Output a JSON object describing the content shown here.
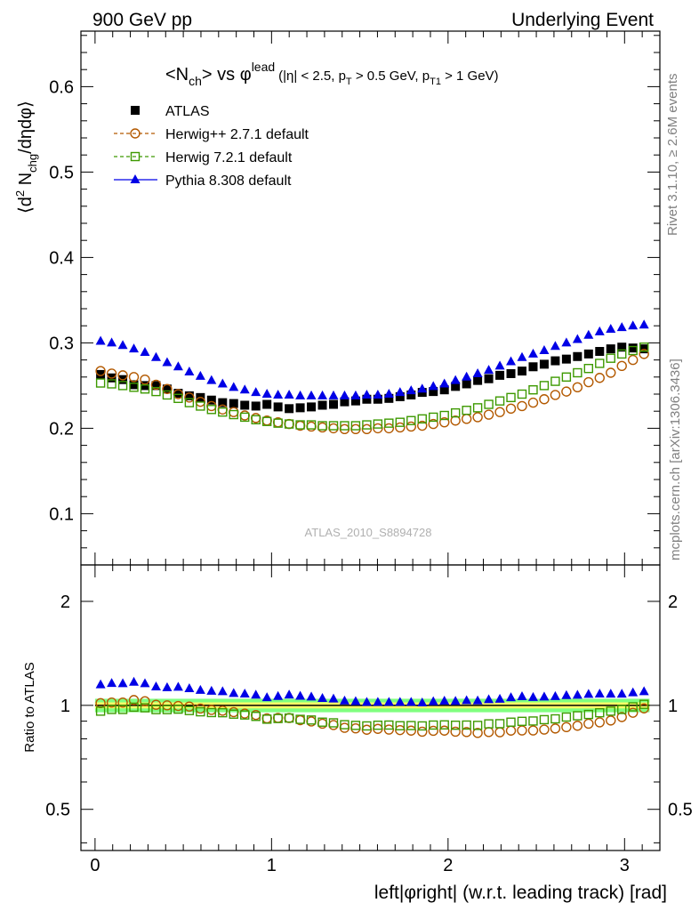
{
  "header": {
    "left": "900 GeV pp",
    "right": "Underlying Event"
  },
  "side_labels": {
    "rivet": "Rivet 3.1.10, ≥ 2.6M events",
    "mcplots": "mcplots.cern.ch [arXiv:1306.3436]"
  },
  "watermark": "ATLAS_2010_S8894728",
  "colors": {
    "atlas": "#000000",
    "herwigpp": "#b35900",
    "herwig7": "#3d9900",
    "pythia": "#0000e6",
    "band_inner": "#ffff66",
    "band_outer": "#80ff80"
  },
  "chart_data": [
    {
      "type": "scatter",
      "title_parts": {
        "open": "<N",
        "sub_ch": "ch",
        "mid": "> vs φ",
        "sup_lead": "lead",
        "cut1": "(|η| < 2.5, p",
        "sub_T": "T",
        "cut2": " > 0.5 GeV, p",
        "sub_T1": "T1",
        "cut3": " > 1 GeV)"
      },
      "ylabel_parts": {
        "a": "⟨d",
        "sup2": "2",
        "b": " N",
        "sub_chg": "chg",
        "c": "/dηdφ⟩"
      },
      "xlim": [
        -0.08,
        3.2
      ],
      "ylim": [
        0.04,
        0.665
      ],
      "yticks": [
        {
          "v": 0.1,
          "label": "0.1"
        },
        {
          "v": 0.2,
          "label": "0.2"
        },
        {
          "v": 0.3,
          "label": "0.3"
        },
        {
          "v": 0.4,
          "label": "0.4"
        },
        {
          "v": 0.5,
          "label": "0.5"
        },
        {
          "v": 0.6,
          "label": "0.6"
        }
      ],
      "x": [
        0.0314,
        0.0942,
        0.1571,
        0.2199,
        0.2827,
        0.3456,
        0.4084,
        0.4712,
        0.5341,
        0.5969,
        0.6597,
        0.7226,
        0.7854,
        0.8482,
        0.9111,
        0.9739,
        1.0367,
        1.0996,
        1.1624,
        1.2252,
        1.2881,
        1.3509,
        1.4137,
        1.4765,
        1.5394,
        1.6022,
        1.665,
        1.7279,
        1.7907,
        1.8535,
        1.9164,
        1.9792,
        2.042,
        2.1049,
        2.1677,
        2.2305,
        2.2934,
        2.3562,
        2.419,
        2.4819,
        2.5447,
        2.6075,
        2.6704,
        2.7332,
        2.796,
        2.8588,
        2.9217,
        2.9845,
        3.0473,
        3.1102
      ],
      "legend": [
        {
          "key": "atlas",
          "label": "ATLAS"
        },
        {
          "key": "herwigpp",
          "label": "Herwig++ 2.7.1 default"
        },
        {
          "key": "herwig7",
          "label": "Herwig 7.2.1 default"
        },
        {
          "key": "pythia",
          "label": "Pythia 8.308 default"
        }
      ],
      "series": [
        {
          "key": "atlas",
          "name": "ATLAS",
          "marker": "filled-square",
          "values": [
            0.263,
            0.259,
            0.257,
            0.251,
            0.25,
            0.25,
            0.246,
            0.241,
            0.238,
            0.236,
            0.233,
            0.23,
            0.229,
            0.227,
            0.226,
            0.228,
            0.225,
            0.223,
            0.224,
            0.225,
            0.227,
            0.228,
            0.231,
            0.232,
            0.234,
            0.234,
            0.235,
            0.237,
            0.239,
            0.242,
            0.243,
            0.245,
            0.249,
            0.252,
            0.256,
            0.258,
            0.262,
            0.264,
            0.267,
            0.272,
            0.275,
            0.279,
            0.281,
            0.284,
            0.287,
            0.29,
            0.293,
            0.295,
            0.294,
            0.293
          ]
        },
        {
          "key": "herwigpp",
          "name": "Herwig++ 2.7.1 default",
          "marker": "open-circle",
          "values": [
            0.267,
            0.264,
            0.262,
            0.26,
            0.257,
            0.251,
            0.246,
            0.24,
            0.236,
            0.231,
            0.226,
            0.222,
            0.219,
            0.215,
            0.212,
            0.209,
            0.207,
            0.205,
            0.203,
            0.202,
            0.201,
            0.2,
            0.199,
            0.199,
            0.199,
            0.2,
            0.2,
            0.201,
            0.202,
            0.203,
            0.205,
            0.207,
            0.209,
            0.211,
            0.213,
            0.216,
            0.219,
            0.223,
            0.226,
            0.23,
            0.234,
            0.239,
            0.243,
            0.248,
            0.254,
            0.259,
            0.265,
            0.273,
            0.28,
            0.287
          ]
        },
        {
          "key": "herwig7",
          "name": "Herwig 7.2.1 default",
          "marker": "open-square",
          "values": [
            0.253,
            0.252,
            0.25,
            0.248,
            0.246,
            0.243,
            0.239,
            0.235,
            0.23,
            0.226,
            0.222,
            0.219,
            0.216,
            0.213,
            0.21,
            0.208,
            0.206,
            0.205,
            0.204,
            0.204,
            0.203,
            0.203,
            0.203,
            0.203,
            0.204,
            0.205,
            0.206,
            0.207,
            0.209,
            0.211,
            0.213,
            0.215,
            0.218,
            0.221,
            0.224,
            0.228,
            0.232,
            0.236,
            0.24,
            0.245,
            0.25,
            0.255,
            0.26,
            0.265,
            0.27,
            0.276,
            0.282,
            0.287,
            0.291,
            0.295
          ]
        },
        {
          "key": "pythia",
          "name": "Pythia 8.308 default",
          "marker": "filled-triangle",
          "values": [
            0.302,
            0.3,
            0.297,
            0.293,
            0.289,
            0.283,
            0.277,
            0.272,
            0.266,
            0.261,
            0.256,
            0.252,
            0.248,
            0.245,
            0.242,
            0.24,
            0.239,
            0.239,
            0.238,
            0.238,
            0.238,
            0.238,
            0.238,
            0.238,
            0.239,
            0.239,
            0.24,
            0.242,
            0.244,
            0.246,
            0.249,
            0.252,
            0.256,
            0.26,
            0.264,
            0.268,
            0.273,
            0.278,
            0.283,
            0.287,
            0.291,
            0.296,
            0.3,
            0.304,
            0.309,
            0.313,
            0.316,
            0.318,
            0.32,
            0.321
          ]
        }
      ]
    },
    {
      "type": "scatter",
      "ylabel": "Ratio to ATLAS",
      "xlabel": "left|φright| (w.r.t. leading track) [rad]",
      "log_y": true,
      "xlim": [
        -0.08,
        3.2
      ],
      "ylim": [
        0.38,
        2.55
      ],
      "xticks": [
        {
          "v": 0,
          "label": "0"
        },
        {
          "v": 1,
          "label": "1"
        },
        {
          "v": 2,
          "label": "2"
        },
        {
          "v": 3,
          "label": "3"
        }
      ],
      "yticks": [
        {
          "v": 0.5,
          "label": "0.5"
        },
        {
          "v": 1,
          "label": "1"
        },
        {
          "v": 2,
          "label": "2"
        }
      ],
      "band_inner_halfwidth": 0.02,
      "band_outer_halfwidth": 0.045,
      "series": [
        {
          "key": "herwigpp",
          "name": "Herwig++ 2.7.1 default",
          "marker": "open-circle",
          "values": [
            1.015,
            1.019,
            1.019,
            1.036,
            1.028,
            1.004,
            1.0,
            0.996,
            0.992,
            0.979,
            0.97,
            0.965,
            0.956,
            0.947,
            0.938,
            0.917,
            0.92,
            0.919,
            0.906,
            0.898,
            0.885,
            0.877,
            0.861,
            0.858,
            0.85,
            0.855,
            0.851,
            0.848,
            0.845,
            0.839,
            0.844,
            0.845,
            0.839,
            0.837,
            0.832,
            0.837,
            0.836,
            0.845,
            0.846,
            0.846,
            0.851,
            0.857,
            0.865,
            0.873,
            0.885,
            0.893,
            0.904,
            0.925,
            0.952,
            0.98
          ]
        },
        {
          "key": "herwig7",
          "name": "Herwig 7.2.1 default",
          "marker": "open-square",
          "values": [
            0.962,
            0.973,
            0.973,
            0.988,
            0.984,
            0.972,
            0.972,
            0.975,
            0.966,
            0.958,
            0.953,
            0.952,
            0.943,
            0.938,
            0.929,
            0.912,
            0.916,
            0.919,
            0.911,
            0.907,
            0.894,
            0.89,
            0.879,
            0.875,
            0.872,
            0.876,
            0.877,
            0.873,
            0.874,
            0.872,
            0.877,
            0.878,
            0.876,
            0.877,
            0.875,
            0.884,
            0.885,
            0.894,
            0.899,
            0.901,
            0.909,
            0.914,
            0.925,
            0.933,
            0.941,
            0.952,
            0.962,
            0.973,
            0.99,
            1.007
          ]
        },
        {
          "key": "pythia",
          "name": "Pythia 8.308 default",
          "marker": "filled-triangle",
          "values": [
            1.148,
            1.158,
            1.156,
            1.167,
            1.156,
            1.132,
            1.126,
            1.129,
            1.118,
            1.106,
            1.099,
            1.096,
            1.083,
            1.079,
            1.071,
            1.053,
            1.062,
            1.072,
            1.063,
            1.058,
            1.048,
            1.044,
            1.03,
            1.026,
            1.021,
            1.021,
            1.021,
            1.021,
            1.021,
            1.017,
            1.025,
            1.029,
            1.028,
            1.032,
            1.031,
            1.039,
            1.042,
            1.053,
            1.06,
            1.055,
            1.058,
            1.061,
            1.068,
            1.07,
            1.077,
            1.079,
            1.078,
            1.078,
            1.088,
            1.096
          ]
        }
      ]
    }
  ]
}
